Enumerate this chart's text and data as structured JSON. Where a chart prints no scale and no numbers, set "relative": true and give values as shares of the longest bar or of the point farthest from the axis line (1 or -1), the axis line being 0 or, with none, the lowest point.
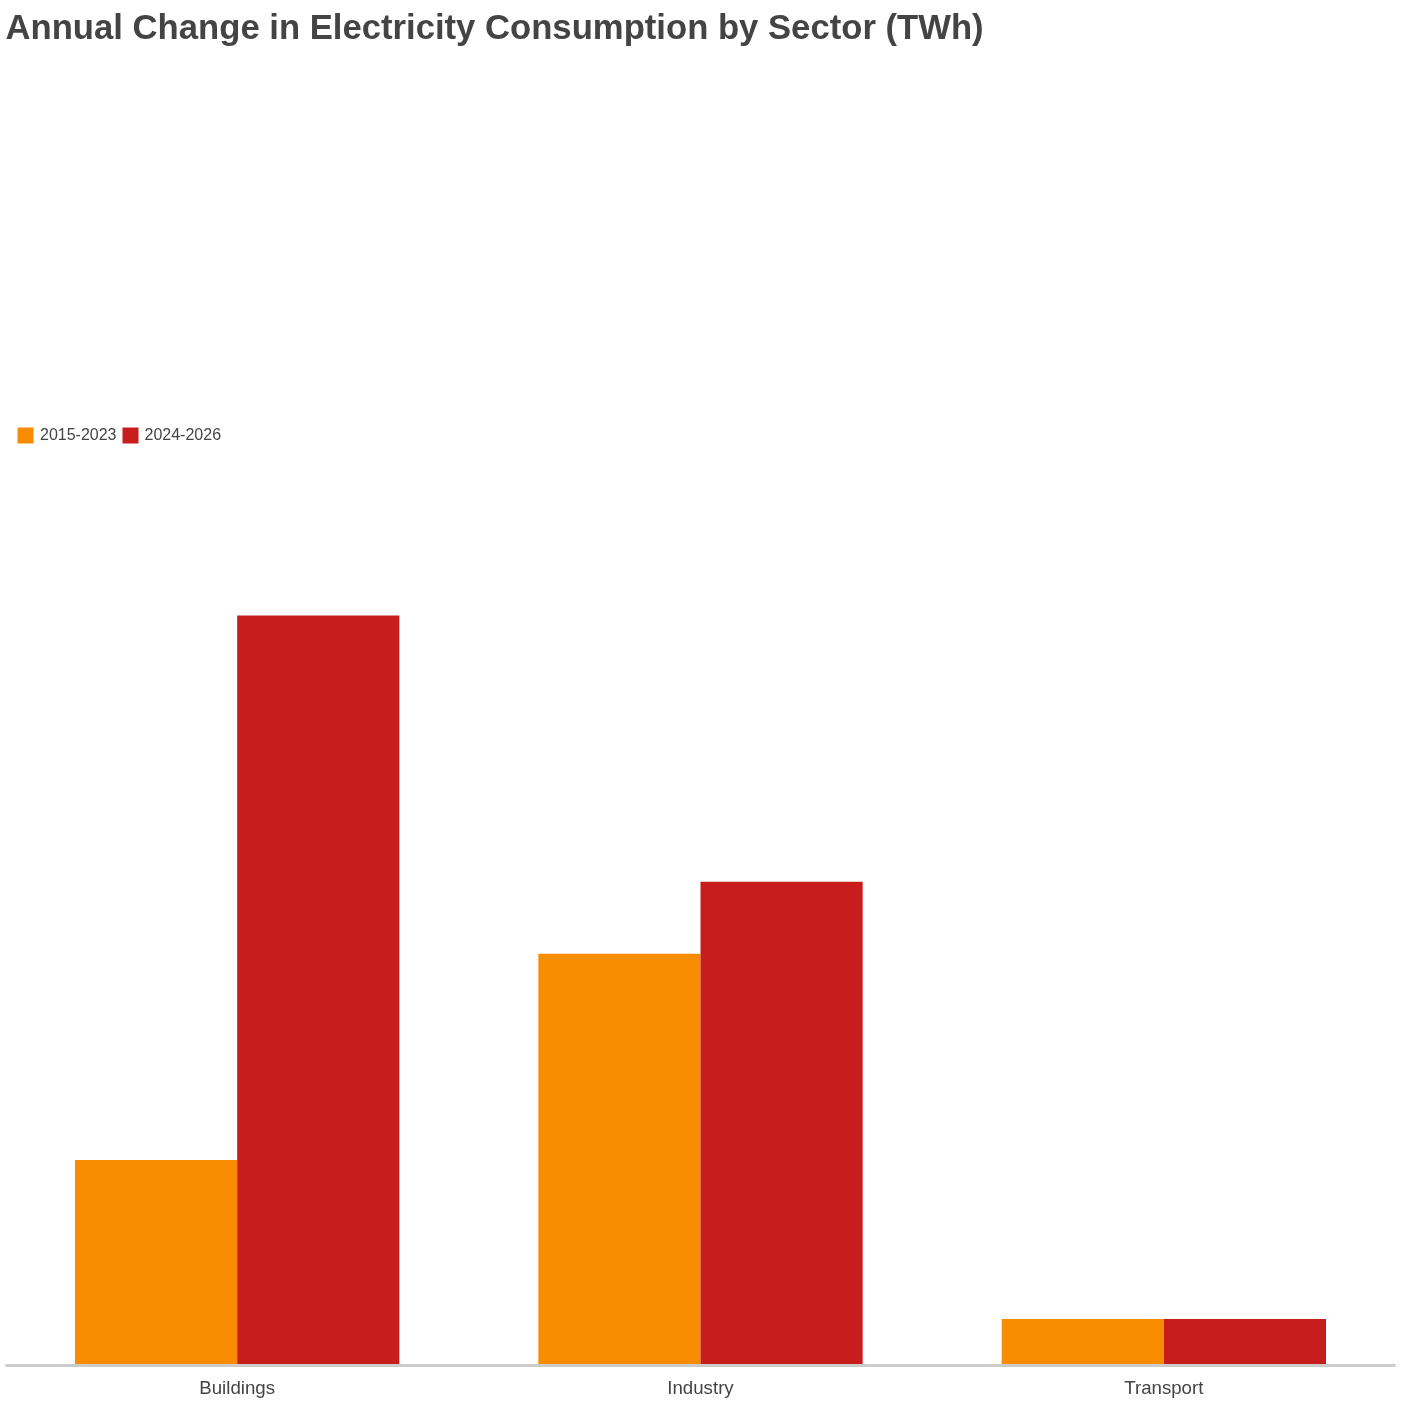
{
  "chart_data": {
    "type": "bar",
    "title": "Annual Change in Electricity Consumption by Sector (TWh)",
    "relative": true,
    "legend": "top left",
    "categories": [
      "Buildings",
      "Industry",
      "Transport"
    ],
    "series": [
      {
        "name": "2015-2023",
        "color": "#f78c00",
        "values": [
          0.274,
          0.549,
          0.062
        ]
      },
      {
        "name": "2024-2026",
        "color": "#c71d1d",
        "values": [
          1,
          0.645,
          0.062
        ]
      }
    ]
  }
}
